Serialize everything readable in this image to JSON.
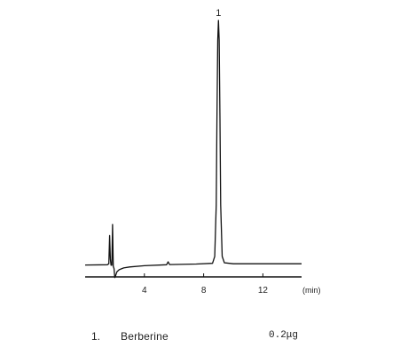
{
  "chart_data": {
    "type": "line",
    "title": "",
    "xlabel": "(min)",
    "ylabel": "",
    "xlim": [
      0,
      15
    ],
    "ylim": [
      0,
      100
    ],
    "x_ticks": [
      4,
      8,
      12
    ],
    "x_tick_labels": [
      "4",
      "8",
      "12"
    ],
    "grid": false,
    "series": [
      {
        "x": [
          0,
          1.5,
          1.6,
          1.65,
          1.7,
          1.75,
          1.8,
          1.85,
          1.9,
          1.95,
          2.0,
          2.05,
          2.1,
          2.15,
          2.3,
          2.6,
          3.0,
          4.0,
          5.5,
          5.6,
          5.7,
          7.5,
          8.6,
          8.75,
          8.85,
          8.9,
          8.95,
          9.0,
          9.05,
          9.1,
          9.15,
          9.25,
          9.4,
          10.0,
          12.0,
          15.0
        ],
        "y": [
          0.5,
          0.6,
          1.0,
          12.5,
          3.0,
          0.4,
          0.4,
          17.0,
          0.0,
          -1.0,
          -4.6,
          -4.0,
          -3.0,
          -2.2,
          -1.4,
          -0.7,
          -0.3,
          0.2,
          0.6,
          1.8,
          0.7,
          0.9,
          1.2,
          4.0,
          25.0,
          60.0,
          92.0,
          100.0,
          92.0,
          60.0,
          25.0,
          4.0,
          1.4,
          1.0,
          1.0,
          1.0
        ]
      }
    ],
    "peaks": [
      {
        "label": "1",
        "x": 9.0
      }
    ]
  },
  "legend": {
    "number": "1.",
    "compound": "Berberine",
    "amount": "0.2μg"
  }
}
